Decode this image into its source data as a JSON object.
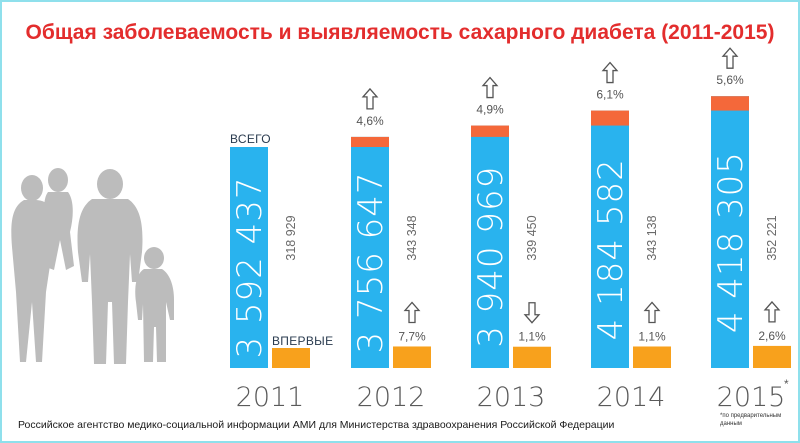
{
  "chart_data": {
    "type": "bar",
    "title": "Общая заболеваемость и выявляемость сахарного диабета (2011-2015)",
    "categories": [
      "2011",
      "2012",
      "2013",
      "2014",
      "2015"
    ],
    "series": [
      {
        "name": "ВСЕГО",
        "values": [
          3592437,
          3756647,
          3940969,
          4184582,
          4418305
        ],
        "labels": [
          "3 592 437",
          "3 756 647",
          "3 940 969",
          "4 184 582",
          "4 418 305"
        ]
      },
      {
        "name": "ВПЕРВЫЕ",
        "values": [
          318929,
          343348,
          339450,
          343138,
          352221
        ],
        "labels": [
          "318 929",
          "343 348",
          "339 450",
          "343 138",
          "352 221"
        ]
      }
    ],
    "total_change": [
      {
        "label": "",
        "dir": "none"
      },
      {
        "label": "4,6%",
        "dir": "up"
      },
      {
        "label": "4,9%",
        "dir": "up"
      },
      {
        "label": "6,1%",
        "dir": "up"
      },
      {
        "label": "5,6%",
        "dir": "up"
      }
    ],
    "new_change": [
      {
        "label": "",
        "dir": "none"
      },
      {
        "label": "7,7%",
        "dir": "up"
      },
      {
        "label": "1,1%",
        "dir": "down"
      },
      {
        "label": "1,1%",
        "dir": "up"
      },
      {
        "label": "2,6%",
        "dir": "up"
      }
    ],
    "year_mark": "*",
    "footnote": "*по предварительным данным",
    "source": "Российское агентство медико-социальной информации АМИ для Министерства здравоохранения Российской Федерации",
    "colors": {
      "total": "#29b3ee",
      "increase": "#f4683a",
      "new": "#f8a11c",
      "title": "#e32d2d",
      "figures": "#bcbcbc",
      "border": "#8fe0ec"
    }
  }
}
